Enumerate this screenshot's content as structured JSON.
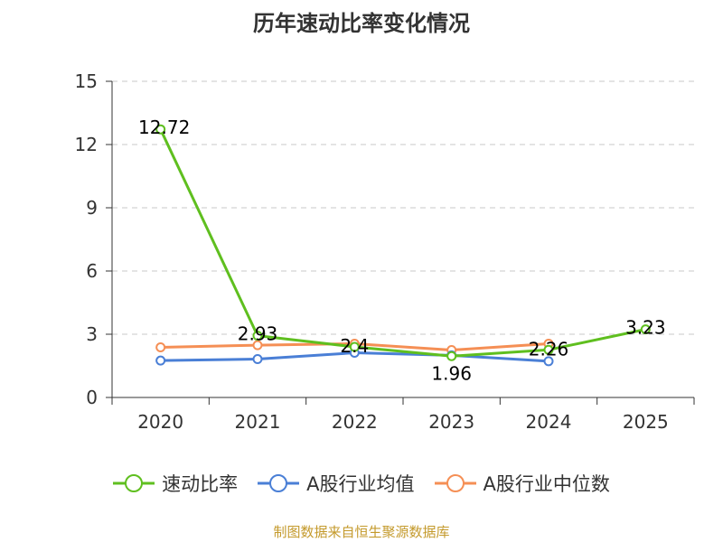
{
  "chart_data": {
    "type": "line",
    "title": "历年速动比率变化情况",
    "categories": [
      "2020",
      "2021",
      "2022",
      "2023",
      "2024",
      "2025"
    ],
    "ylim": [
      0,
      15
    ],
    "yticks": [
      "0",
      "3",
      "6",
      "9",
      "12",
      "15"
    ],
    "grid": true,
    "legend_position": "bottom",
    "series": [
      {
        "name": "速动比率",
        "color": "#5fbf1f",
        "values": [
          12.72,
          2.93,
          2.4,
          1.96,
          2.26,
          3.23
        ],
        "labels": [
          "12.72",
          "2.93",
          "2.4",
          "1.96",
          "2.26",
          "3.23"
        ]
      },
      {
        "name": "A股行业均值",
        "color": "#4a7fd6",
        "values": [
          1.75,
          1.82,
          2.12,
          2.0,
          1.72,
          null
        ]
      },
      {
        "name": "A股行业中位数",
        "color": "#f58f55",
        "values": [
          2.38,
          2.48,
          2.55,
          2.25,
          2.55,
          null
        ]
      }
    ]
  },
  "source": "制图数据来自恒生聚源数据库"
}
